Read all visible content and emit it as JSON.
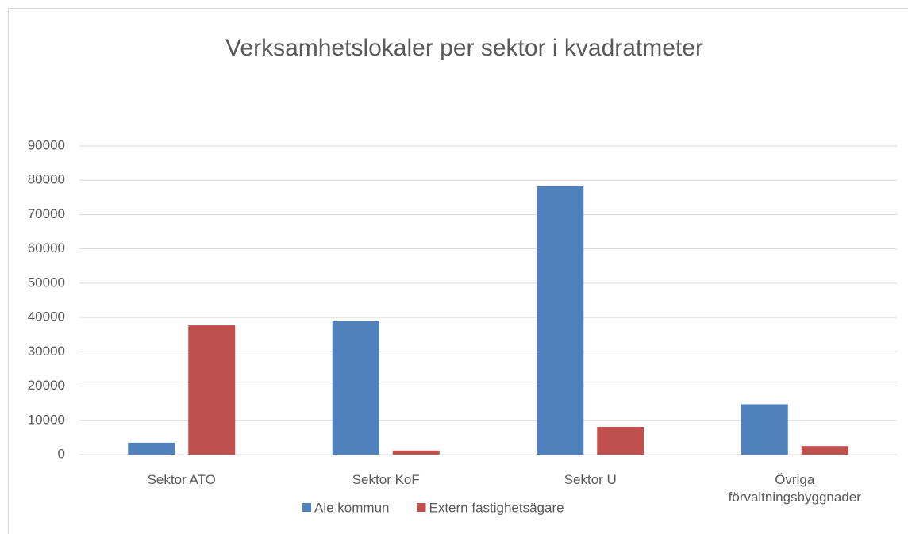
{
  "chart_data": {
    "type": "bar",
    "title": "Verksamhetslokaler per sektor i kvadratmeter",
    "categories": [
      "Sektor ATO",
      "Sektor KoF",
      "Sektor U",
      "Övriga förvaltningsbyggnader"
    ],
    "series": [
      {
        "name": "Ale kommun",
        "color": "#4f81bd",
        "values": [
          3500,
          38900,
          78200,
          14700
        ]
      },
      {
        "name": "Extern fastighetsägare",
        "color": "#c0504d",
        "values": [
          37700,
          1200,
          8100,
          2500
        ]
      }
    ],
    "ylim": [
      0,
      90000
    ],
    "yticks": [
      0,
      10000,
      20000,
      30000,
      40000,
      50000,
      60000,
      70000,
      80000,
      90000
    ],
    "grid": true,
    "legend": "bottom"
  }
}
